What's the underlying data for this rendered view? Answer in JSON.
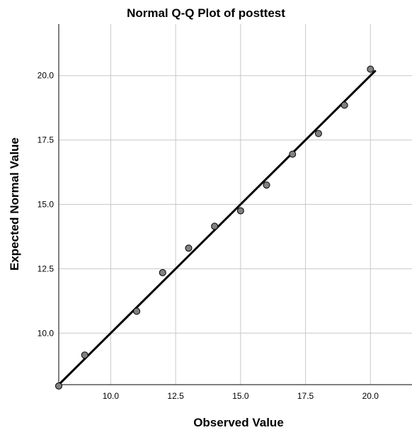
{
  "chart_data": {
    "type": "scatter",
    "title": "Normal Q-Q Plot of posttest",
    "xlabel": "Observed Value",
    "ylabel": "Expected Normal Value",
    "xlim": [
      8,
      21.6
    ],
    "ylim": [
      8.0,
      22.0
    ],
    "xticks": [
      10,
      12.5,
      15,
      17.5,
      20
    ],
    "yticks": [
      10,
      12.5,
      15,
      17.5,
      20
    ],
    "xtick_labels": [
      "10.0",
      "12.5",
      "15.0",
      "17.5",
      "20.0"
    ],
    "ytick_labels": [
      "10.0",
      "12.5",
      "15.0",
      "17.5",
      "20.0"
    ],
    "grid": true,
    "points": {
      "x": [
        8,
        9,
        11,
        12,
        13,
        14,
        15,
        16,
        17,
        18,
        19,
        20
      ],
      "y": [
        7.95,
        9.15,
        10.85,
        12.35,
        13.3,
        14.15,
        14.75,
        15.75,
        16.95,
        17.75,
        18.85,
        20.25
      ]
    },
    "reference_line": {
      "x": [
        8,
        20.2
      ],
      "y": [
        8.0,
        20.2
      ]
    },
    "colors": {
      "point_fill": "#808080",
      "point_stroke": "#000000",
      "line": "#000000",
      "grid": "#c8c8c8"
    }
  }
}
